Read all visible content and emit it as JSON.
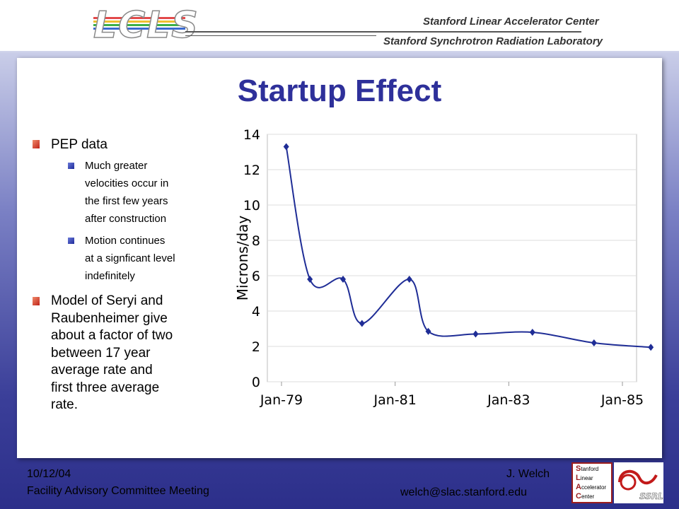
{
  "header": {
    "logo": "LCLS",
    "institution_1": "Stanford Linear Accelerator Center",
    "institution_2": "Stanford Synchrotron Radiation Laboratory"
  },
  "slide": {
    "title": "Startup Effect",
    "bullets": [
      {
        "text": "PEP data",
        "sub": [
          "Much greater\nvelocities occur in\nthe first few years\nafter construction",
          "Motion continues\nat a signficant level\nindefinitely"
        ]
      },
      {
        "text": "Model of Seryi and\nRaubenheimer give\nabout a factor of two\nbetween 17 year\naverage rate and\nfirst three average\nrate."
      }
    ]
  },
  "chart_data": {
    "type": "line",
    "ylabel": "Microns/day",
    "xlabel": "",
    "ylim": [
      0,
      14
    ],
    "yticks": [
      "0",
      "2",
      "4",
      "6",
      "8",
      "10",
      "12",
      "14"
    ],
    "xticks": [
      "Jan-79",
      "Jan-81",
      "Jan-83",
      "Jan-85"
    ],
    "xlim_years": [
      1979,
      1985
    ],
    "grid": "horizontal",
    "series": [
      {
        "color": "#1f2d96",
        "x": [
          "1979-02",
          "1979-07",
          "1980-02",
          "1980-06",
          "1981-04",
          "1981-08",
          "1982-06",
          "1983-06",
          "1984-07",
          "1985-07"
        ],
        "y": [
          13.3,
          5.8,
          5.8,
          3.3,
          5.8,
          2.85,
          2.7,
          2.8,
          2.2,
          1.95
        ]
      }
    ]
  },
  "footer": {
    "date": "10/12/04",
    "meeting": "Facility Advisory Committee Meeting",
    "name": "J. Welch",
    "email": "welch@slac.stanford.edu",
    "slac_logo": [
      "Stanford",
      "Linear",
      "Accelerator",
      "Center"
    ],
    "ssrl_logo": "SSRL"
  },
  "colors": {
    "title": "#2e309a",
    "line": "#1f2d96",
    "bullet_l1": "#c0241a",
    "bullet_l2": "#1e2a9a"
  }
}
